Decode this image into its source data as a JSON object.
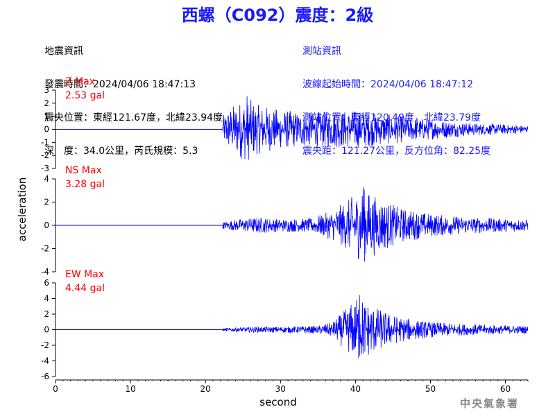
{
  "title": "西螺（C092）震度：2級",
  "quake_info": {
    "heading": "地震資訊",
    "time": "發震時間：2024/04/06 18:47:13",
    "epicenter": "震央位置：東經121.67度，北緯23.94度",
    "depth_mag": "深　度：34.0公里，芮氏規模：5.3"
  },
  "station_info": {
    "heading": "測站資訊",
    "wave_time": "波線起始時間：2024/04/06 18:47:12",
    "location": "測站位置：東經120.49度，北緯23.79度",
    "distance": "震央距：121.27公里，反方位角：82.25度"
  },
  "footer": "中央氣象署",
  "chart_data": {
    "type": "line",
    "xlabel": "second",
    "ylabel": "acceleration",
    "xlim": [
      0,
      63
    ],
    "xticks": [
      0,
      10,
      20,
      30,
      40,
      50,
      60
    ],
    "series_color": "#0000ff",
    "label_color": "#ff0000",
    "panels": [
      {
        "name": "Z Max",
        "max_label": "2.53 gal",
        "ylim": [
          -3,
          3
        ],
        "yticks": [
          -3,
          -2,
          -1,
          0,
          1,
          2,
          3
        ],
        "onset": 22.3,
        "peak_time": 25.5,
        "envelope": [
          [
            22.3,
            1.0
          ],
          [
            23.0,
            1.6
          ],
          [
            25.5,
            2.53
          ],
          [
            27,
            1.9
          ],
          [
            30,
            1.5
          ],
          [
            34,
            1.3
          ],
          [
            40,
            1.5
          ],
          [
            42,
            1.3
          ],
          [
            48,
            0.9
          ],
          [
            55,
            0.5
          ],
          [
            63,
            0.3
          ]
        ]
      },
      {
        "name": "NS Max",
        "max_label": "3.28 gal",
        "ylim": [
          -4,
          4
        ],
        "yticks": [
          -4,
          -2,
          0,
          2,
          4
        ],
        "onset": 22.3,
        "peak_time": 41,
        "envelope": [
          [
            22.3,
            0.3
          ],
          [
            24,
            0.5
          ],
          [
            27,
            0.7
          ],
          [
            30,
            0.55
          ],
          [
            34,
            0.6
          ],
          [
            37,
            1.3
          ],
          [
            39,
            2.2
          ],
          [
            41,
            3.28
          ],
          [
            43,
            2.4
          ],
          [
            46,
            1.5
          ],
          [
            50,
            1.0
          ],
          [
            55,
            0.7
          ],
          [
            63,
            0.5
          ]
        ]
      },
      {
        "name": "EW Max",
        "max_label": "4.44 gal",
        "ylim": [
          -6,
          6
        ],
        "yticks": [
          -6,
          -4,
          -2,
          0,
          2,
          4,
          6
        ],
        "onset": 22.3,
        "peak_time": 40.5,
        "envelope": [
          [
            22.3,
            0.2
          ],
          [
            26,
            0.35
          ],
          [
            30,
            0.4
          ],
          [
            35,
            0.5
          ],
          [
            37,
            1.0
          ],
          [
            38.5,
            2.5
          ],
          [
            40.5,
            4.44
          ],
          [
            42,
            3.3
          ],
          [
            44,
            2.3
          ],
          [
            46,
            1.6
          ],
          [
            50,
            1.0
          ],
          [
            55,
            0.7
          ],
          [
            63,
            0.5
          ]
        ]
      }
    ]
  }
}
